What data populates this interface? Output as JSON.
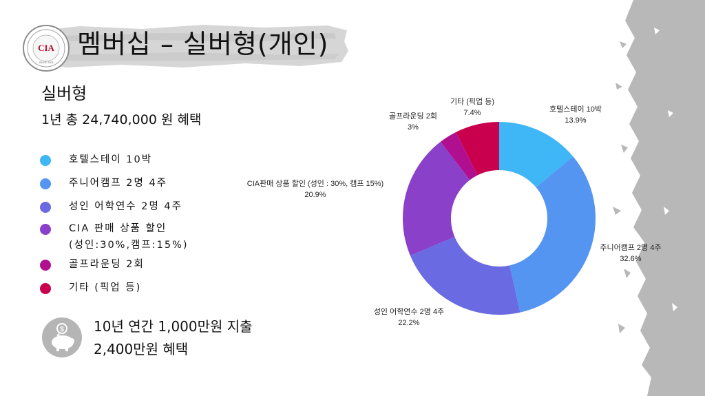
{
  "header": {
    "title": "멤버십 – 실버형(개인)"
  },
  "logo": {
    "abbr": "CIA",
    "ring_text": "CEBU INTERNATIONAL ACADEMY",
    "since": "SINCE 2003"
  },
  "section": {
    "subtitle": "실버형",
    "summary": "1년 총 24,740,000 원 혜택"
  },
  "legend": [
    {
      "label": "호텔스테이 10박",
      "color": "#3fb6f5"
    },
    {
      "label": "주니어캠프 2명 4주",
      "color": "#5595f2"
    },
    {
      "label": "성인 어학연수 2명 4주",
      "color": "#6a6ae2"
    },
    {
      "label": "CIA 판매 상품 할인\n(성인:30%,캠프:15%)",
      "color": "#8a40c8"
    },
    {
      "label": "골프라운딩 2회",
      "color": "#b0108f"
    },
    {
      "label": "기타 (픽업 등)",
      "color": "#c8004e"
    }
  ],
  "footer": {
    "line1": "10년 연간 1,000만원 지출",
    "line2": "2,400만원 혜택"
  },
  "chart_data": {
    "type": "pie",
    "donut": true,
    "slices": [
      {
        "name": "호텔스테이 10박",
        "value": 13.9,
        "label": "13.9%",
        "color": "#3fb6f5"
      },
      {
        "name": "주니어캠프 2명 4주",
        "value": 32.6,
        "label": "32.6%",
        "color": "#5595f2"
      },
      {
        "name": "성인 어학연수 2명 4주",
        "value": 22.2,
        "label": "22.2%",
        "color": "#6a6ae2"
      },
      {
        "name": "CIA판매 상품 할인 (성인 : 30%, 캠프 15%)",
        "value": 20.9,
        "label": "20.9%",
        "color": "#8a40c8"
      },
      {
        "name": "골프라운딩 2회",
        "value": 3,
        "label": "3%",
        "color": "#b0108f"
      },
      {
        "name": "기타 (픽업 등)",
        "value": 7.4,
        "label": "7.4%",
        "color": "#c8004e"
      }
    ]
  }
}
